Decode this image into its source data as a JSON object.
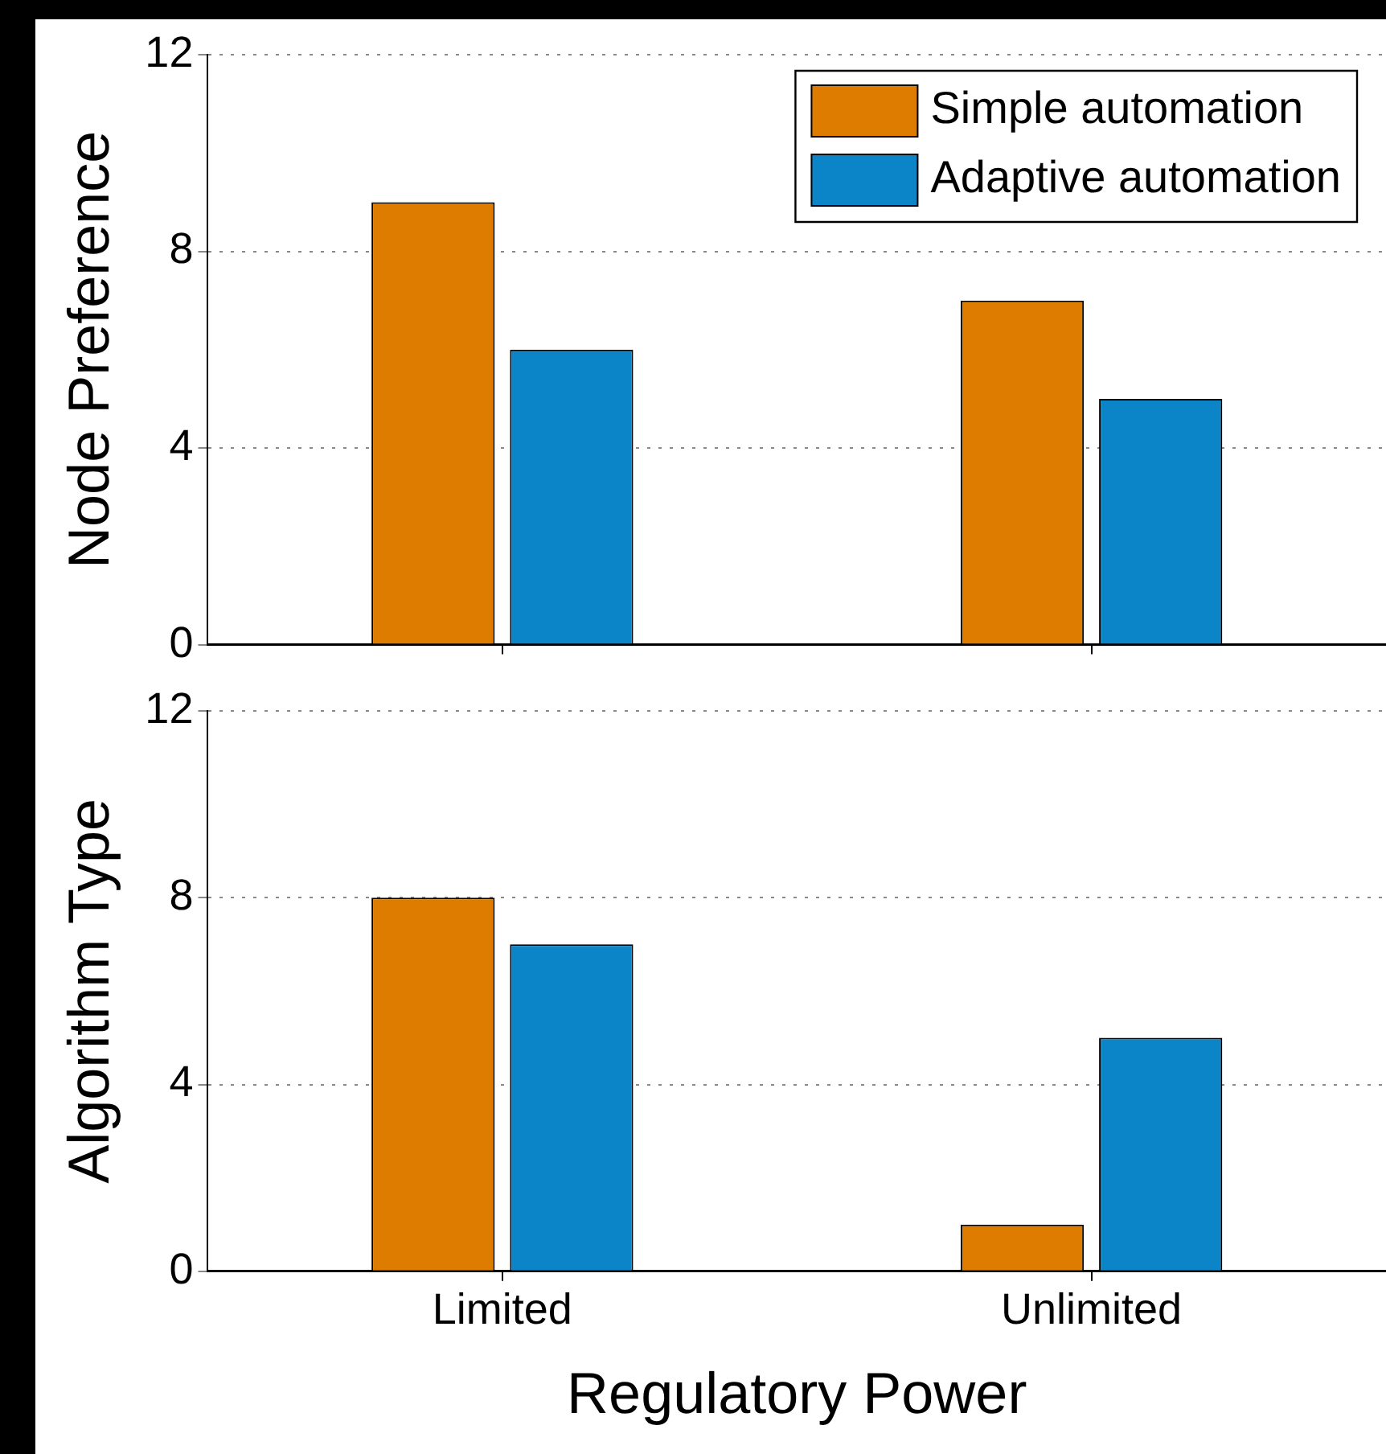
{
  "chart_data": [
    {
      "type": "bar",
      "ylabel": "Node Preference",
      "categories": [
        null,
        null
      ],
      "ylim": [
        0,
        12
      ],
      "yticks": [
        0,
        4,
        8,
        12
      ],
      "grid": "y",
      "legend": "top right",
      "tick_labels": "y",
      "series": [
        {
          "name": "Simple automation",
          "color": "#de7c00",
          "values": [
            9,
            7
          ]
        },
        {
          "name": "Adaptive automation",
          "color": "#0b84c8",
          "values": [
            6,
            5
          ]
        }
      ]
    },
    {
      "type": "bar",
      "ylabel": "Algorithm Type",
      "xlabel": "Regulatory Power",
      "categories": [
        "Limited",
        "Unlimited"
      ],
      "ylim": [
        0,
        12
      ],
      "yticks": [
        0,
        4,
        8,
        12
      ],
      "grid": "y",
      "series": [
        {
          "color": "#de7c00",
          "values": [
            8,
            1
          ]
        },
        {
          "color": "#0b84c8",
          "values": [
            7,
            5
          ]
        }
      ]
    }
  ]
}
